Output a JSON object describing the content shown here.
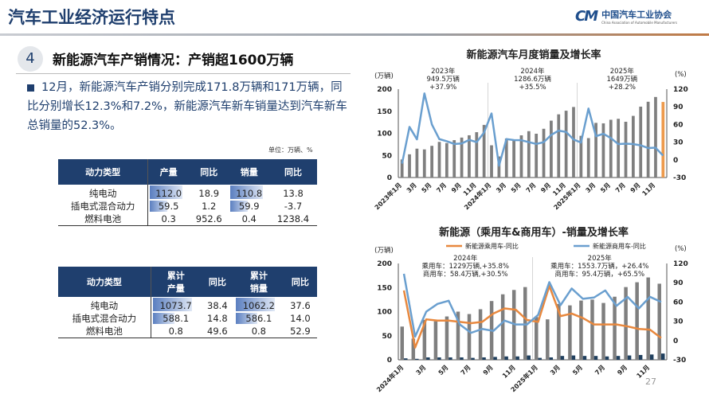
{
  "header": {
    "title": "汽车工业经济运行特点",
    "logo_cn": "中国汽车工业协会",
    "logo_en": "China Association of Automobile Manufacturers",
    "logo_mark": "CAM"
  },
  "section": {
    "number": "4",
    "title": "新能源汽车产销情况：产销超1600万辆"
  },
  "bullet": "12月，新能源汽车产销分别完成171.8万辆和171万辆，同比分别增长12.3%和7.2%，新能源汽车新车销量达到汽车新车总销量的52.3%。",
  "unit": "单位：万辆、%",
  "table1": {
    "headers": [
      "动力类型",
      "产量",
      "同比",
      "销量",
      "同比"
    ],
    "rows": [
      [
        "纯电动",
        "112.0",
        "18.9",
        "110.8",
        "13.8"
      ],
      [
        "插电式混合动力",
        "59.5",
        "1.2",
        "59.9",
        "-3.7"
      ],
      [
        "燃料电池",
        "0.3",
        "952.6",
        "0.4",
        "1238.4"
      ]
    ],
    "bar_fill": [
      [
        1.0,
        1.0
      ],
      [
        0.53,
        0.54
      ],
      [
        0,
        0
      ]
    ]
  },
  "table2": {
    "headers": [
      "动力类型",
      "累计\n产量",
      "同比",
      "累计\n销量",
      "同比"
    ],
    "rows": [
      [
        "纯电动",
        "1073.7",
        "38.4",
        "1062.2",
        "37.6"
      ],
      [
        "插电式混合动力",
        "588.1",
        "14.8",
        "586.1",
        "14.0"
      ],
      [
        "燃料电池",
        "0.8",
        "49.6",
        "0.8",
        "52.9"
      ]
    ],
    "bar_fill": [
      [
        1.0,
        1.0
      ],
      [
        0.55,
        0.55
      ],
      [
        0,
        0
      ]
    ]
  },
  "page_number": "27",
  "chart_data": [
    {
      "type": "bar+line",
      "title": "新能源汽车月度销量及增长率",
      "y_unit_left": "(万辆)",
      "y_unit_right": "(%)",
      "ylim_left": [
        0,
        200
      ],
      "ylim_right": [
        -30,
        120
      ],
      "yticks_left": [
        "0",
        "50",
        "100",
        "150",
        "200"
      ],
      "yticks_right": [
        "-30",
        "0",
        "30",
        "60",
        "90",
        "120"
      ],
      "xtick_labels": [
        "2023年1月",
        "3月",
        "5月",
        "7月",
        "9月",
        "11月",
        "2024年1月",
        "3月",
        "5月",
        "7月",
        "9月",
        "11月",
        "2025年1月",
        "3月",
        "5月",
        "7月",
        "9月",
        "11月"
      ],
      "annotations": [
        [
          "2023年",
          "949.5万辆",
          "+37.9%"
        ],
        [
          "2024年",
          "1286.6万辆",
          "+35.5%"
        ],
        [
          "2025年",
          "1649万辆",
          "+28.2%"
        ]
      ],
      "colors": {
        "bar": "#7f7f7f",
        "bar_last": "#ed9a4c",
        "line": "#6a9fcf"
      },
      "series": [
        {
          "kind": "bar",
          "values": [
            40.8,
            52.5,
            65.3,
            63.6,
            71.7,
            80.6,
            78,
            84.6,
            90.4,
            95.6,
            102.6,
            119.1,
            72.9,
            47.7,
            88.3,
            85,
            95.5,
            104.9,
            99.1,
            110.3,
            128.7,
            143,
            151.2,
            159.6,
            94.4,
            89.2,
            123.7,
            122.6,
            130.7,
            132.9,
            126.2,
            139.5,
            160.4,
            171.5,
            182.3,
            171
          ]
        },
        {
          "kind": "line",
          "axis": "right",
          "values": [
            -6.3,
            55.9,
            34.8,
            112.8,
            60.2,
            35.2,
            31.6,
            27,
            27.7,
            33.9,
            30,
            46.4,
            78.8,
            -9.9,
            35.3,
            33.5,
            33.3,
            30.1,
            27,
            30,
            42.3,
            49.6,
            47.4,
            34.5,
            29.4,
            87.1,
            40.1,
            44.2,
            36.9,
            26.7,
            27.4,
            26.8,
            24.6,
            20,
            20.6,
            7.2
          ]
        }
      ]
    },
    {
      "type": "bar+line",
      "title": "新能源（乘用车&商用车）-销量及增长率",
      "y_unit_left": "(万辆)",
      "y_unit_right": "(%)",
      "ylim_left": [
        0,
        200
      ],
      "ylim_right": [
        -30,
        120
      ],
      "yticks_left": [
        "0",
        "50",
        "100",
        "150",
        "200"
      ],
      "yticks_right": [
        "-30",
        "0",
        "30",
        "60",
        "90",
        "120"
      ],
      "xtick_labels": [
        "2024年1月",
        "3月",
        "5月",
        "7月",
        "9月",
        "11月",
        "2025年1月",
        "3月",
        "5月",
        "7月",
        "9月",
        "11月"
      ],
      "legend": [
        "新能源乘用车-同比",
        "新能源商用车-同比"
      ],
      "annotations": [
        [
          "2024年",
          "乘用车：1229万辆,+35.8%",
          "商用车：58.4万辆,+30.5%"
        ],
        [
          "2025年",
          "乘用车：1553.7万辆，+26.4%",
          "商用车：95.4万辆，+65.5%"
        ]
      ],
      "colors": {
        "bar_passenger": "#7f7f7f",
        "bar_commercial": "#1f3f5e",
        "line_passenger": "#e8883e",
        "line_commercial": "#6a9fcf"
      },
      "series": [
        {
          "kind": "bar",
          "values": [
            69,
            44,
            83,
            80,
            90,
            100,
            95,
            105,
            122,
            136,
            145,
            151,
            89,
            84,
            116,
            113,
            123,
            125,
            118,
            131,
            151,
            161,
            171,
            158
          ]
        },
        {
          "kind": "bar",
          "values": [
            3,
            2,
            5,
            5,
            5,
            5,
            4,
            5,
            6,
            7,
            7,
            9,
            4,
            5,
            8,
            9,
            8,
            8,
            7,
            8,
            9,
            10,
            11,
            13
          ]
        },
        {
          "kind": "line",
          "name": "新能源乘用车-同比",
          "axis": "right",
          "values": [
            78,
            -11,
            33,
            31,
            31,
            29,
            27,
            29,
            42,
            50,
            48,
            32,
            29,
            85,
            38,
            42,
            35,
            25,
            25,
            25,
            22,
            18,
            17,
            4
          ]
        },
        {
          "kind": "line",
          "name": "新能源商用车-同比",
          "axis": "right",
          "values": [
            104,
            6,
            45,
            57,
            62,
            25,
            12,
            18,
            15,
            31,
            25,
            25,
            40,
            91,
            55,
            81,
            65,
            67,
            78,
            54,
            68,
            50,
            68,
            60
          ]
        }
      ]
    }
  ]
}
